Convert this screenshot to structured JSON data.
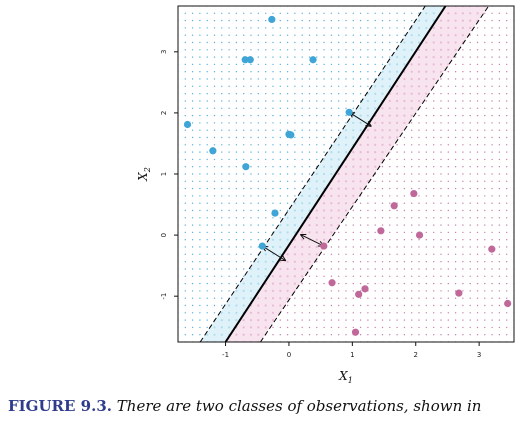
{
  "chart_data": {
    "type": "scatter",
    "xlabel": "X",
    "xlabel_sub": "1",
    "ylabel": "X",
    "ylabel_sub": "2",
    "xlim": [
      -1.75,
      3.55
    ],
    "ylim": [
      -1.75,
      3.75
    ],
    "xticks": [
      -1,
      0,
      1,
      2,
      3
    ],
    "yticks": [
      -1,
      0,
      1,
      2,
      3
    ],
    "grid": false,
    "colors": {
      "class_blue": "#3fa4d6",
      "class_pink": "#c0689a",
      "margin_blue_fill": "#a7d9ee",
      "margin_pink_fill": "#e9b3d0",
      "hyperplane": "#000000"
    },
    "hyperplane": {
      "p1": [
        -1.0,
        -1.75
      ],
      "p2": [
        2.47,
        3.75
      ]
    },
    "margin_upper": {
      "p1": [
        -1.4,
        -1.75
      ],
      "p2": [
        2.15,
        3.75
      ]
    },
    "margin_lower": {
      "p1": [
        -0.45,
        -1.75
      ],
      "p2": [
        3.15,
        3.75
      ]
    },
    "series": [
      {
        "class": "blue",
        "points": [
          [
            -0.27,
            3.53
          ],
          [
            -0.69,
            2.87
          ],
          [
            -0.61,
            2.87
          ],
          [
            0.38,
            2.87
          ],
          [
            -1.6,
            1.81
          ],
          [
            0.95,
            2.01
          ],
          [
            0.0,
            1.65
          ],
          [
            0.03,
            1.64
          ],
          [
            -1.2,
            1.38
          ],
          [
            -0.68,
            1.12
          ],
          [
            -0.22,
            0.36
          ],
          [
            -0.42,
            -0.18
          ]
        ]
      },
      {
        "class": "pink",
        "points": [
          [
            1.97,
            0.68
          ],
          [
            1.66,
            0.48
          ],
          [
            1.45,
            0.07
          ],
          [
            2.06,
            0.0
          ],
          [
            0.55,
            -0.18
          ],
          [
            3.2,
            -0.23
          ],
          [
            0.68,
            -0.78
          ],
          [
            1.2,
            -0.88
          ],
          [
            1.1,
            -0.97
          ],
          [
            2.68,
            -0.95
          ],
          [
            3.45,
            -1.12
          ],
          [
            1.05,
            -1.59
          ]
        ]
      }
    ],
    "arrows": [
      {
        "from": [
          0.95,
          2.01
        ],
        "to": [
          1.3,
          1.78
        ]
      },
      {
        "from": [
          -0.42,
          -0.18
        ],
        "to": [
          -0.05,
          -0.42
        ]
      },
      {
        "from": [
          0.55,
          -0.18
        ],
        "to": [
          0.18,
          0.01
        ]
      }
    ]
  },
  "caption": {
    "label": "FIGURE 9.3.",
    "text": "There are two classes of observations, shown in"
  }
}
